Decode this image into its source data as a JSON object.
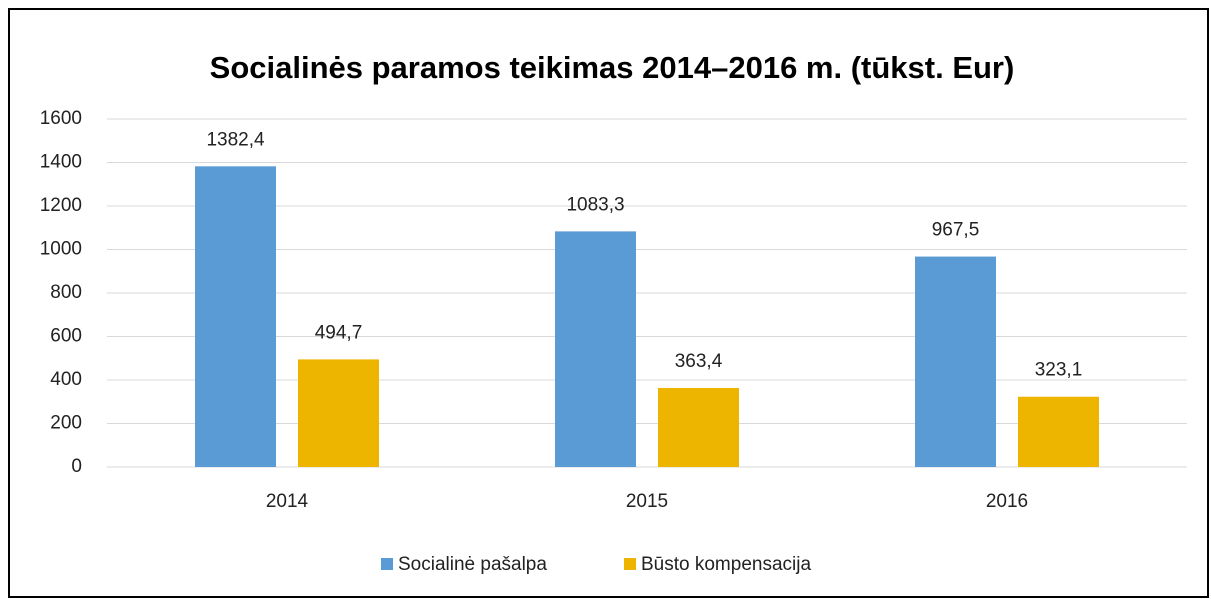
{
  "chart_data": {
    "type": "bar",
    "title": "Socialinės paramos teikimas 2014–2016 m. (tūkst. Eur)",
    "categories": [
      "2014",
      "2015",
      "2016"
    ],
    "series": [
      {
        "name": "Socialinė pašalpa",
        "color": "#5b9bd5",
        "values": [
          1382.4,
          1083.3,
          967.5
        ],
        "value_labels": [
          "1382,4",
          "1083,3",
          "967,5"
        ]
      },
      {
        "name": "Būsto kompensacija",
        "color": "#edb400",
        "values": [
          494.7,
          363.4,
          323.1
        ],
        "value_labels": [
          "494,7",
          "363,4",
          "323,1"
        ]
      }
    ],
    "ylim": [
      0,
      1600
    ],
    "yticks": [
      0,
      200,
      400,
      600,
      800,
      1000,
      1200,
      1400,
      1600
    ],
    "grid": true,
    "legend": "bottom"
  }
}
